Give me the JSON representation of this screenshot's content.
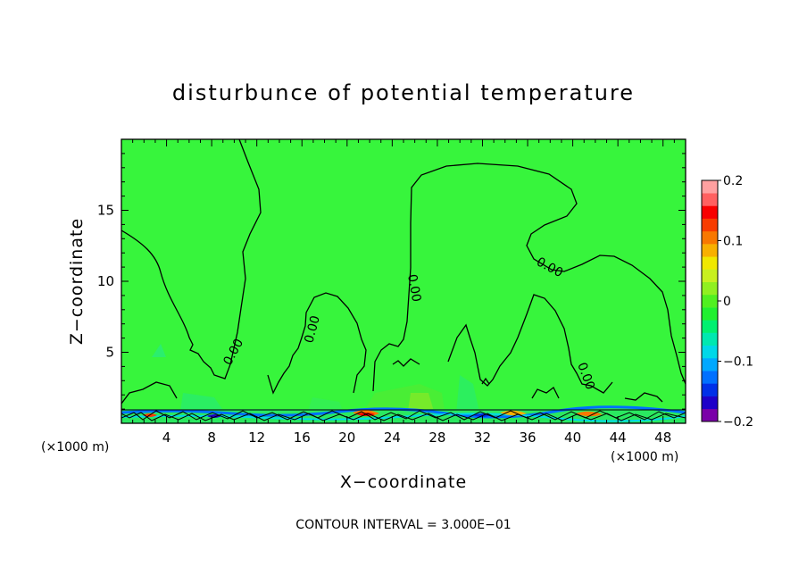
{
  "chart_data": {
    "type": "heatmap",
    "title": "disturbunce of potential temperature",
    "xlabel": "X−coordinate",
    "ylabel": "Z−coordinate",
    "x_unit_left": "(×1000 m)",
    "x_unit_right": "(×1000 m)",
    "xlim": [
      0,
      50
    ],
    "ylim": [
      0,
      20
    ],
    "xticks": [
      4,
      8,
      12,
      16,
      20,
      24,
      28,
      32,
      36,
      40,
      44,
      48
    ],
    "yticks": [
      5,
      10,
      15
    ],
    "colorbar": {
      "range": [
        -0.2,
        0.2
      ],
      "ticks": [
        "0.2",
        "0.1",
        "0",
        "−0.1",
        "−0.2"
      ],
      "colors_bottom_to_top": [
        "#7a00a8",
        "#1e00c8",
        "#0030e8",
        "#0070ff",
        "#00a8ff",
        "#00d8e8",
        "#00e8b0",
        "#00f070",
        "#20f030",
        "#50f020",
        "#90f020",
        "#c8f020",
        "#f0e800",
        "#f8b000",
        "#f87800",
        "#f83c00",
        "#f80000",
        "#ff6060",
        "#ffa0a0"
      ]
    },
    "contour_interval_text": "CONTOUR INTERVAL = 3.000E−01",
    "contour_labels": [
      "0.00",
      "0.00",
      "0.00",
      "0.00",
      "0.00"
    ],
    "background_color": "#37f53c",
    "grid": false
  }
}
